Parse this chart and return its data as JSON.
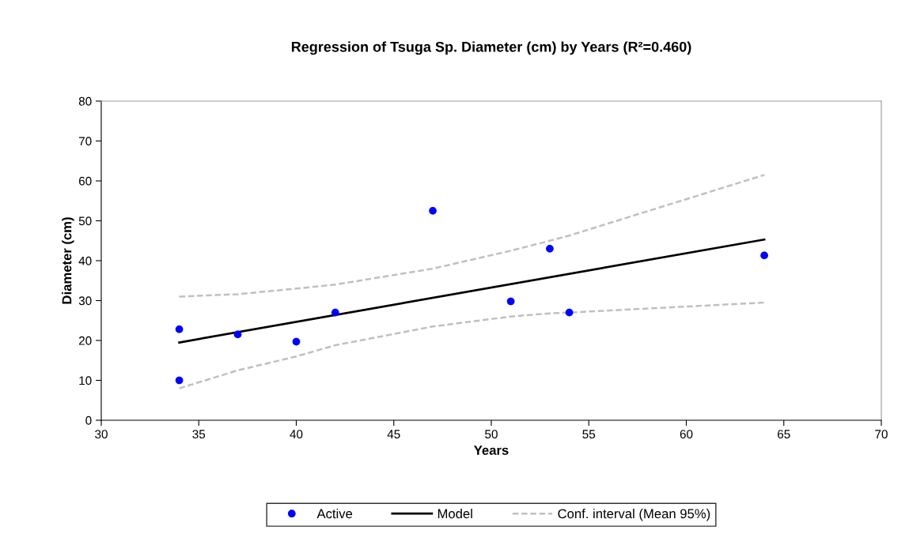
{
  "chart_data": {
    "type": "scatter",
    "title": "Regression of Tsuga Sp. Diameter (cm) by Years (R²=0.460)",
    "xlabel": "Years",
    "ylabel": "Diameter (cm)",
    "xlim": [
      30,
      70
    ],
    "xticks": [
      30,
      35,
      40,
      45,
      50,
      55,
      60,
      65,
      70
    ],
    "ylim": [
      0,
      80
    ],
    "yticks": [
      0,
      10,
      20,
      30,
      40,
      50,
      60,
      70,
      80
    ],
    "grid": false,
    "legend": "bottom",
    "series": [
      {
        "name": "Active",
        "marker": "circle",
        "color": "#0000ff",
        "x": [
          34,
          34,
          37,
          40,
          42,
          47,
          51,
          53,
          54,
          64
        ],
        "values": [
          22.8,
          10,
          21.5,
          19.7,
          27,
          52.5,
          29.8,
          43,
          27,
          41.3
        ]
      },
      {
        "name": "Model",
        "type": "line",
        "line_style": "solid",
        "color": "#000000",
        "x": [
          34,
          64
        ],
        "values": [
          19.5,
          45.3
        ]
      },
      {
        "name": "Conf. interval (Mean 95%)",
        "type": "line",
        "line_style": "dashed",
        "color": "#c0c0c0",
        "x": [
          34,
          37,
          40,
          42,
          47,
          51,
          53,
          54,
          64
        ],
        "values": [
          31.0,
          31.6,
          33.0,
          34.0,
          38.0,
          42.5,
          45.0,
          46.3,
          61.5
        ]
      },
      {
        "type": "line",
        "line_style": "dashed",
        "color": "#c0c0c0",
        "x": [
          34,
          37,
          40,
          42,
          47,
          51,
          53,
          54,
          64
        ],
        "values": [
          8.0,
          12.5,
          16.0,
          18.8,
          23.5,
          26.0,
          26.8,
          27.0,
          29.5
        ]
      }
    ]
  }
}
